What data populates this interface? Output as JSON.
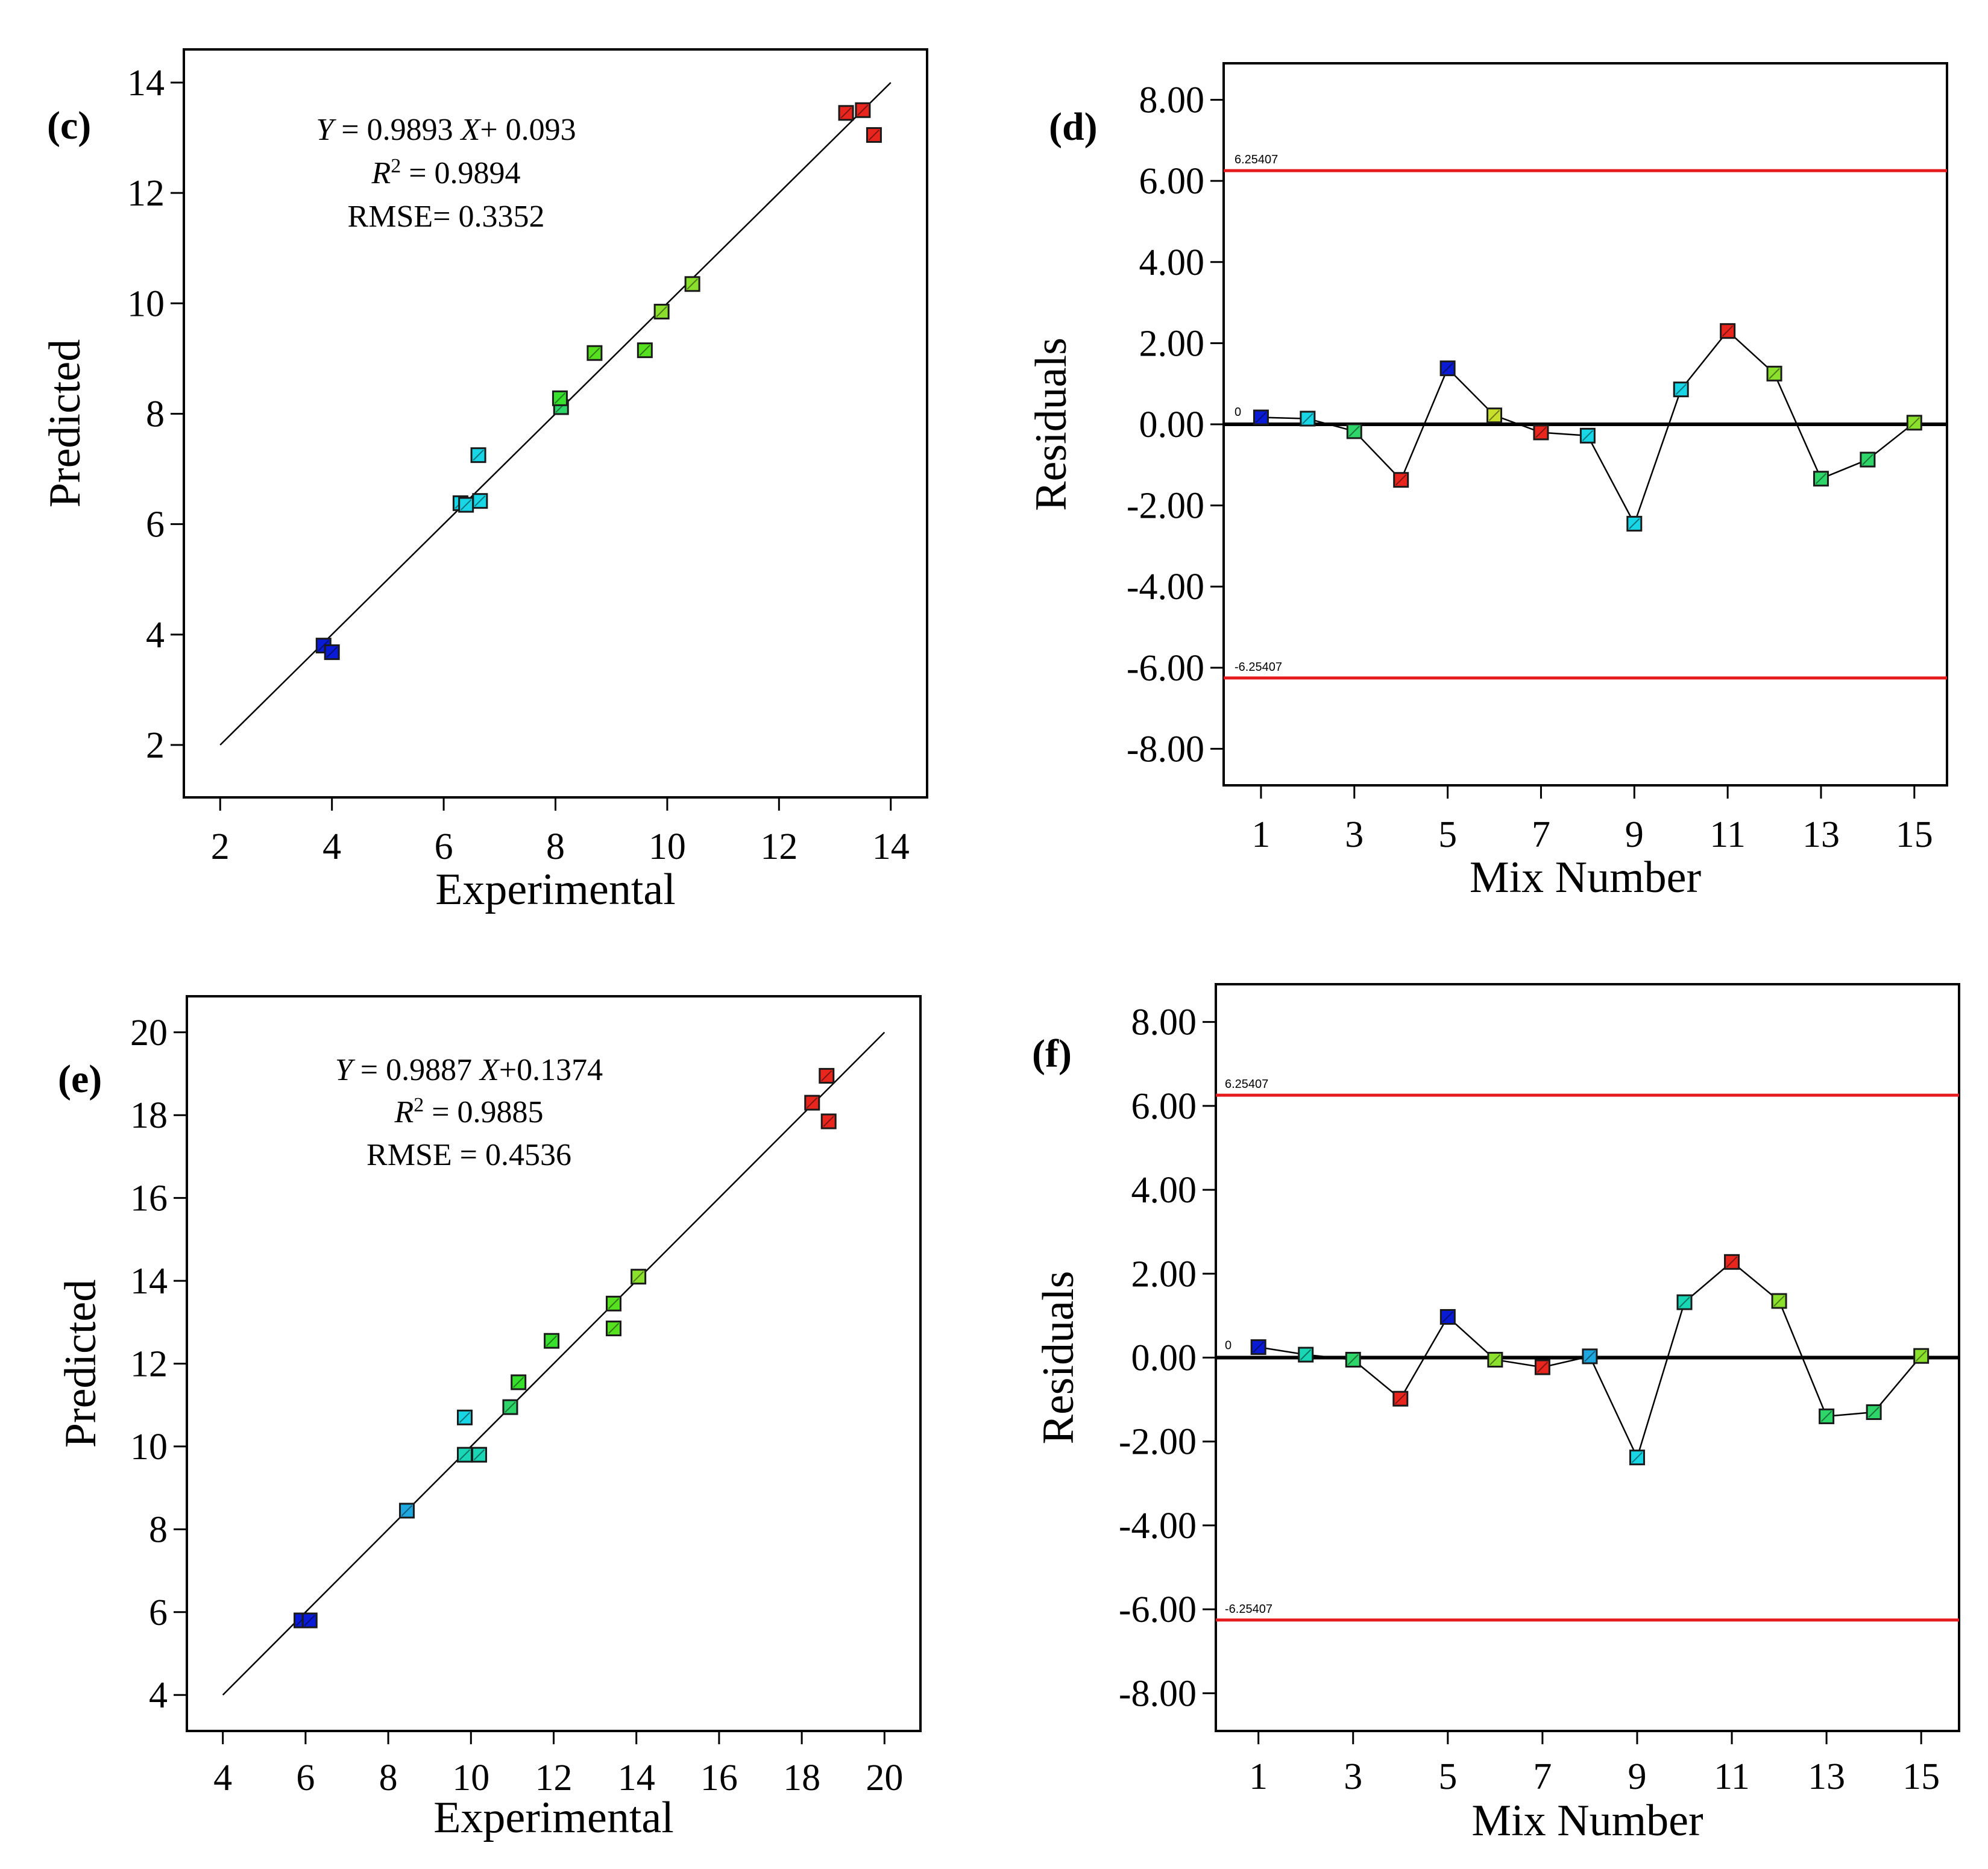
{
  "chart_data": [
    {
      "id": "c",
      "type": "scatter",
      "panel_label": "(c)",
      "xlabel": "Experimental",
      "ylabel": "Predicted",
      "xlim": [
        1.35,
        14.65
      ],
      "ylim": [
        1.05,
        14.6
      ],
      "xticks": [
        2,
        4,
        6,
        8,
        10,
        12,
        14
      ],
      "yticks": [
        2,
        4,
        6,
        8,
        10,
        12,
        14
      ],
      "equation": {
        "y_italic": "Y",
        "eq1": " = 0.9893 ",
        "x_italic": "X",
        "eq2": "+ 0.093",
        "r_italic": "R",
        "r_sup": "2",
        "r_val": " = 0.9894",
        "rmse": "RMSE= 0.3352"
      },
      "fit_line": {
        "x": [
          2,
          14
        ],
        "y": [
          2,
          14
        ]
      },
      "points": [
        {
          "x": 3.85,
          "y": 3.8,
          "color": "#0a1bd6"
        },
        {
          "x": 4.0,
          "y": 3.68,
          "color": "#0a1bd6"
        },
        {
          "x": 6.3,
          "y": 6.38,
          "color": "#19d6e6"
        },
        {
          "x": 6.4,
          "y": 6.35,
          "color": "#19d6e6"
        },
        {
          "x": 6.65,
          "y": 6.42,
          "color": "#19d6e6"
        },
        {
          "x": 6.62,
          "y": 7.25,
          "color": "#19d6e6"
        },
        {
          "x": 8.1,
          "y": 8.12,
          "color": "#2ed66a"
        },
        {
          "x": 8.08,
          "y": 8.28,
          "color": "#36e02c"
        },
        {
          "x": 8.7,
          "y": 9.1,
          "color": "#56e020"
        },
        {
          "x": 9.6,
          "y": 9.15,
          "color": "#56e020"
        },
        {
          "x": 9.9,
          "y": 9.85,
          "color": "#8ae02c"
        },
        {
          "x": 10.45,
          "y": 10.35,
          "color": "#8ae02c"
        },
        {
          "x": 13.2,
          "y": 13.45,
          "color": "#e8261e"
        },
        {
          "x": 13.5,
          "y": 13.5,
          "color": "#e8261e"
        },
        {
          "x": 13.7,
          "y": 13.05,
          "color": "#e8261e"
        }
      ]
    },
    {
      "id": "d",
      "type": "line",
      "panel_label": "(d)",
      "xlabel": "Mix Number",
      "ylabel": "Residuals",
      "xlim": [
        0.2,
        15.7
      ],
      "ylim": [
        -8.9,
        8.9
      ],
      "xticks": [
        1,
        3,
        5,
        7,
        9,
        11,
        13,
        15
      ],
      "yticks": [
        -8,
        -6,
        -4,
        -2,
        0,
        2,
        4,
        6,
        8
      ],
      "ytick_labels": [
        "-8.00",
        "-6.00",
        "-4.00",
        "-2.00",
        "0.00",
        "2.00",
        "4.00",
        "6.00",
        "8.00"
      ],
      "upper_limit": 6.25407,
      "lower_limit": -6.25407,
      "upper_limit_label": "6.25407",
      "lower_limit_label": "-6.25407",
      "zero_label": "0",
      "points": [
        {
          "x": 1,
          "y": 0.17,
          "color": "#0a1bd6"
        },
        {
          "x": 2,
          "y": 0.14,
          "color": "#19d6e6"
        },
        {
          "x": 3,
          "y": -0.17,
          "color": "#2ed66a"
        },
        {
          "x": 4,
          "y": -1.37,
          "color": "#e8261e"
        },
        {
          "x": 5,
          "y": 1.38,
          "color": "#0a1bd6"
        },
        {
          "x": 6,
          "y": 0.22,
          "color": "#c8e02c"
        },
        {
          "x": 7,
          "y": -0.2,
          "color": "#e8261e"
        },
        {
          "x": 8,
          "y": -0.28,
          "color": "#19d6e6"
        },
        {
          "x": 9,
          "y": -2.45,
          "color": "#19d6e6"
        },
        {
          "x": 10,
          "y": 0.86,
          "color": "#19d6e6"
        },
        {
          "x": 11,
          "y": 2.3,
          "color": "#e8261e"
        },
        {
          "x": 12,
          "y": 1.25,
          "color": "#8ae02c"
        },
        {
          "x": 13,
          "y": -1.34,
          "color": "#2ed66a"
        },
        {
          "x": 14,
          "y": -0.87,
          "color": "#2ed66a"
        },
        {
          "x": 15,
          "y": 0.04,
          "color": "#8ae02c"
        }
      ]
    },
    {
      "id": "e",
      "type": "scatter",
      "panel_label": "(e)",
      "xlabel": "Experimental",
      "ylabel": "Predicted",
      "xlim": [
        3.13,
        20.87
      ],
      "ylim": [
        3.13,
        20.87
      ],
      "xticks": [
        4,
        6,
        8,
        10,
        12,
        14,
        16,
        18,
        20
      ],
      "yticks": [
        4,
        6,
        8,
        10,
        12,
        14,
        16,
        18,
        20
      ],
      "equation": {
        "y_italic": "Y",
        "eq1": " = 0.9887 ",
        "x_italic": "X",
        "eq2": "+0.1374",
        "r_italic": "R",
        "r_sup": "2",
        "r_val": " = 0.9885",
        "rmse": "RMSE = 0.4536"
      },
      "fit_line": {
        "x": [
          4,
          20
        ],
        "y": [
          4,
          20
        ]
      },
      "points": [
        {
          "x": 5.9,
          "y": 5.8,
          "color": "#0a1bd6"
        },
        {
          "x": 6.1,
          "y": 5.8,
          "color": "#0a1bd6"
        },
        {
          "x": 8.45,
          "y": 8.45,
          "color": "#1fa8e0"
        },
        {
          "x": 9.85,
          "y": 9.8,
          "color": "#19d6b4"
        },
        {
          "x": 10.2,
          "y": 9.8,
          "color": "#19d6b4"
        },
        {
          "x": 9.85,
          "y": 10.7,
          "color": "#19d6e6"
        },
        {
          "x": 10.95,
          "y": 10.95,
          "color": "#2ed66a"
        },
        {
          "x": 11.15,
          "y": 11.55,
          "color": "#36e02c"
        },
        {
          "x": 11.95,
          "y": 12.55,
          "color": "#36e02c"
        },
        {
          "x": 13.45,
          "y": 12.85,
          "color": "#56e020"
        },
        {
          "x": 13.45,
          "y": 13.45,
          "color": "#56e020"
        },
        {
          "x": 14.05,
          "y": 14.1,
          "color": "#8ae02c"
        },
        {
          "x": 18.25,
          "y": 18.3,
          "color": "#e8261e"
        },
        {
          "x": 18.6,
          "y": 18.95,
          "color": "#e8261e"
        },
        {
          "x": 18.65,
          "y": 17.85,
          "color": "#e8261e"
        }
      ]
    },
    {
      "id": "f",
      "type": "line",
      "panel_label": "(f)",
      "xlabel": "Mix Number",
      "ylabel": "Residuals",
      "xlim": [
        0.1,
        15.8
      ],
      "ylim": [
        -8.9,
        8.9
      ],
      "xticks": [
        1,
        3,
        5,
        7,
        9,
        11,
        13,
        15
      ],
      "yticks": [
        -8,
        -6,
        -4,
        -2,
        0,
        2,
        4,
        6,
        8
      ],
      "ytick_labels": [
        "-8.00",
        "-6.00",
        "-4.00",
        "-2.00",
        "0.00",
        "2.00",
        "4.00",
        "6.00",
        "8.00"
      ],
      "upper_limit": 6.25407,
      "lower_limit": -6.25407,
      "upper_limit_label": "6.25407",
      "lower_limit_label": "-6.25407",
      "zero_label": "0",
      "points": [
        {
          "x": 1,
          "y": 0.25,
          "color": "#0a1bd6"
        },
        {
          "x": 2,
          "y": 0.07,
          "color": "#19d6b4"
        },
        {
          "x": 3,
          "y": -0.05,
          "color": "#2ed66a"
        },
        {
          "x": 4,
          "y": -0.98,
          "color": "#e8261e"
        },
        {
          "x": 5,
          "y": 0.97,
          "color": "#0a1bd6"
        },
        {
          "x": 6,
          "y": -0.05,
          "color": "#8ae02c"
        },
        {
          "x": 7,
          "y": -0.23,
          "color": "#e8261e"
        },
        {
          "x": 8,
          "y": 0.03,
          "color": "#1fa8e0"
        },
        {
          "x": 9,
          "y": -2.38,
          "color": "#19d6e6"
        },
        {
          "x": 10,
          "y": 1.32,
          "color": "#19d6b4"
        },
        {
          "x": 11,
          "y": 2.28,
          "color": "#e8261e"
        },
        {
          "x": 12,
          "y": 1.35,
          "color": "#8ae02c"
        },
        {
          "x": 13,
          "y": -1.4,
          "color": "#2ed66a"
        },
        {
          "x": 14,
          "y": -1.3,
          "color": "#2ed66a"
        },
        {
          "x": 15,
          "y": 0.04,
          "color": "#8ae02c"
        }
      ]
    }
  ],
  "colors": {
    "limit_line": "#e41a1c",
    "axis": "#000000",
    "marker_edge": "#1a1a1a"
  }
}
